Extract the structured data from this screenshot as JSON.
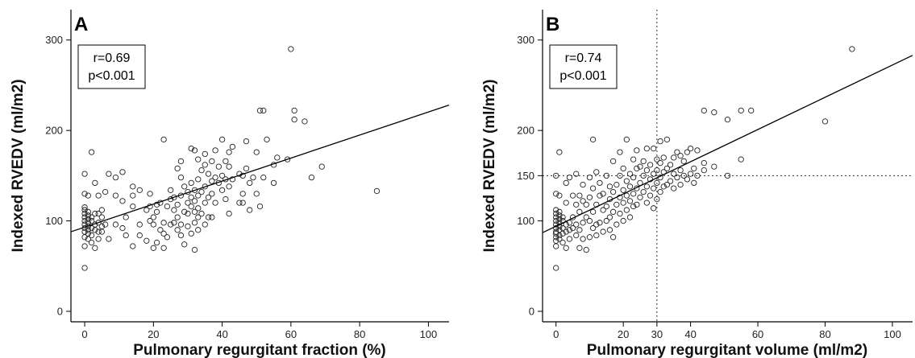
{
  "chart_data": [
    {
      "type": "scatter",
      "panel_label": "A",
      "xlabel": "Pulmonary regurgitant fraction (%)",
      "ylabel": "Indexed RVEDV (ml/m2)",
      "xlim": [
        -4,
        106
      ],
      "ylim": [
        0,
        330
      ],
      "xticks": [
        0,
        20,
        40,
        60,
        80,
        100
      ],
      "yticks": [
        0,
        100,
        200,
        300
      ],
      "annotation": [
        "r=0.69",
        "p<0.001"
      ],
      "regression": {
        "x": [
          -4,
          106
        ],
        "y": [
          88,
          228
        ]
      },
      "reference_lines": [],
      "points": [
        [
          0,
          48
        ],
        [
          0,
          72
        ],
        [
          0,
          82
        ],
        [
          0,
          88
        ],
        [
          0,
          92
        ],
        [
          0,
          96
        ],
        [
          0,
          100
        ],
        [
          0,
          104
        ],
        [
          0,
          108
        ],
        [
          0,
          112
        ],
        [
          0,
          115
        ],
        [
          0,
          130
        ],
        [
          0,
          152
        ],
        [
          1,
          80
        ],
        [
          1,
          86
        ],
        [
          1,
          90
        ],
        [
          1,
          94
        ],
        [
          1,
          98
        ],
        [
          1,
          102
        ],
        [
          1,
          106
        ],
        [
          1,
          110
        ],
        [
          1,
          128
        ],
        [
          2,
          76
        ],
        [
          2,
          84
        ],
        [
          2,
          92
        ],
        [
          2,
          100
        ],
        [
          2,
          104
        ],
        [
          2,
          176
        ],
        [
          3,
          70
        ],
        [
          3,
          90
        ],
        [
          3,
          96
        ],
        [
          3,
          108
        ],
        [
          3,
          142
        ],
        [
          4,
          80
        ],
        [
          4,
          88
        ],
        [
          4,
          98
        ],
        [
          4,
          108
        ],
        [
          4,
          128
        ],
        [
          5,
          88
        ],
        [
          5,
          94
        ],
        [
          5,
          104
        ],
        [
          5,
          112
        ],
        [
          6,
          96
        ],
        [
          6,
          132
        ],
        [
          7,
          80
        ],
        [
          7,
          152
        ],
        [
          9,
          96
        ],
        [
          9,
          128
        ],
        [
          9,
          148
        ],
        [
          11,
          92
        ],
        [
          11,
          122
        ],
        [
          11,
          154
        ],
        [
          12,
          84
        ],
        [
          12,
          104
        ],
        [
          14,
          72
        ],
        [
          14,
          116
        ],
        [
          14,
          128
        ],
        [
          14,
          138
        ],
        [
          16,
          84
        ],
        [
          16,
          96
        ],
        [
          16,
          134
        ],
        [
          18,
          78
        ],
        [
          18,
          112
        ],
        [
          19,
          100
        ],
        [
          19,
          116
        ],
        [
          19,
          130
        ],
        [
          20,
          70
        ],
        [
          20,
          96
        ],
        [
          20,
          104
        ],
        [
          21,
          76
        ],
        [
          21,
          110
        ],
        [
          21,
          118
        ],
        [
          22,
          90
        ],
        [
          22,
          120
        ],
        [
          23,
          70
        ],
        [
          23,
          86
        ],
        [
          23,
          98
        ],
        [
          23,
          190
        ],
        [
          24,
          82
        ],
        [
          24,
          116
        ],
        [
          25,
          96
        ],
        [
          25,
          124
        ],
        [
          25,
          134
        ],
        [
          26,
          98
        ],
        [
          26,
          112
        ],
        [
          26,
          126
        ],
        [
          27,
          90
        ],
        [
          27,
          104
        ],
        [
          27,
          118
        ],
        [
          27,
          158
        ],
        [
          28,
          84
        ],
        [
          28,
          96
        ],
        [
          28,
          128
        ],
        [
          28,
          148
        ],
        [
          28,
          166
        ],
        [
          29,
          74
        ],
        [
          29,
          110
        ],
        [
          29,
          138
        ],
        [
          30,
          94
        ],
        [
          30,
          108
        ],
        [
          30,
          120
        ],
        [
          30,
          132
        ],
        [
          31,
          86
        ],
        [
          31,
          116
        ],
        [
          31,
          126
        ],
        [
          31,
          142
        ],
        [
          31,
          180
        ],
        [
          32,
          68
        ],
        [
          32,
          98
        ],
        [
          32,
          110
        ],
        [
          32,
          122
        ],
        [
          32,
          134
        ],
        [
          32,
          178
        ],
        [
          33,
          90
        ],
        [
          33,
          104
        ],
        [
          33,
          114
        ],
        [
          33,
          128
        ],
        [
          33,
          146
        ],
        [
          33,
          168
        ],
        [
          34,
          108
        ],
        [
          34,
          132
        ],
        [
          34,
          156
        ],
        [
          35,
          96
        ],
        [
          35,
          120
        ],
        [
          35,
          138
        ],
        [
          35,
          162
        ],
        [
          35,
          174
        ],
        [
          36,
          104
        ],
        [
          36,
          126
        ],
        [
          36,
          152
        ],
        [
          37,
          104
        ],
        [
          37,
          130
        ],
        [
          37,
          144
        ],
        [
          37,
          166
        ],
        [
          38,
          120
        ],
        [
          38,
          148
        ],
        [
          38,
          178
        ],
        [
          39,
          142
        ],
        [
          39,
          160
        ],
        [
          40,
          134
        ],
        [
          40,
          150
        ],
        [
          40,
          190
        ],
        [
          41,
          124
        ],
        [
          41,
          146
        ],
        [
          41,
          166
        ],
        [
          42,
          108
        ],
        [
          42,
          138
        ],
        [
          42,
          160
        ],
        [
          42,
          176
        ],
        [
          43,
          146
        ],
        [
          43,
          182
        ],
        [
          45,
          120
        ],
        [
          45,
          152
        ],
        [
          46,
          120
        ],
        [
          46,
          130
        ],
        [
          46,
          150
        ],
        [
          47,
          158
        ],
        [
          47,
          188
        ],
        [
          48,
          112
        ],
        [
          48,
          142
        ],
        [
          49,
          148
        ],
        [
          50,
          130
        ],
        [
          50,
          176
        ],
        [
          51,
          116
        ],
        [
          51,
          222
        ],
        [
          52,
          148
        ],
        [
          52,
          222
        ],
        [
          53,
          190
        ],
        [
          55,
          142
        ],
        [
          55,
          162
        ],
        [
          56,
          170
        ],
        [
          59,
          168
        ],
        [
          60,
          290
        ],
        [
          61,
          212
        ],
        [
          61,
          222
        ],
        [
          64,
          210
        ],
        [
          66,
          148
        ],
        [
          69,
          160
        ],
        [
          85,
          133
        ]
      ]
    },
    {
      "type": "scatter",
      "panel_label": "B",
      "xlabel": "Pulmonary regurgitant volume (ml/m2)",
      "ylabel": "Indexed RVEDV (ml/m2)",
      "xlim": [
        -4,
        106
      ],
      "ylim": [
        0,
        330
      ],
      "xticks": [
        0,
        20,
        30,
        40,
        60,
        80,
        100
      ],
      "yticks": [
        0,
        100,
        150,
        200,
        300
      ],
      "annotation": [
        "r=0.74",
        "p<0.001"
      ],
      "regression": {
        "x": [
          -4,
          106
        ],
        "y": [
          87,
          283
        ]
      },
      "reference_lines": [
        {
          "orientation": "vertical",
          "value": 30
        },
        {
          "orientation": "horizontal",
          "value": 150
        }
      ],
      "points": [
        [
          0,
          48
        ],
        [
          0,
          72
        ],
        [
          0,
          78
        ],
        [
          0,
          82
        ],
        [
          0,
          86
        ],
        [
          0,
          88
        ],
        [
          0,
          92
        ],
        [
          0,
          96
        ],
        [
          0,
          100
        ],
        [
          0,
          104
        ],
        [
          0,
          108
        ],
        [
          0,
          112
        ],
        [
          0,
          130
        ],
        [
          0,
          150
        ],
        [
          1,
          80
        ],
        [
          1,
          84
        ],
        [
          1,
          90
        ],
        [
          1,
          94
        ],
        [
          1,
          98
        ],
        [
          1,
          102
        ],
        [
          1,
          106
        ],
        [
          1,
          110
        ],
        [
          1,
          128
        ],
        [
          1,
          176
        ],
        [
          2,
          76
        ],
        [
          2,
          86
        ],
        [
          2,
          92
        ],
        [
          2,
          100
        ],
        [
          2,
          104
        ],
        [
          3,
          70
        ],
        [
          3,
          88
        ],
        [
          3,
          96
        ],
        [
          3,
          120
        ],
        [
          3,
          142
        ],
        [
          4,
          80
        ],
        [
          4,
          90
        ],
        [
          4,
          98
        ],
        [
          4,
          148
        ],
        [
          5,
          92
        ],
        [
          5,
          104
        ],
        [
          5,
          128
        ],
        [
          6,
          84
        ],
        [
          6,
          96
        ],
        [
          6,
          118
        ],
        [
          6,
          152
        ],
        [
          7,
          70
        ],
        [
          7,
          90
        ],
        [
          7,
          110
        ],
        [
          7,
          128
        ],
        [
          8,
          80
        ],
        [
          8,
          98
        ],
        [
          8,
          122
        ],
        [
          8,
          140
        ],
        [
          9,
          68
        ],
        [
          9,
          104
        ],
        [
          9,
          118
        ],
        [
          10,
          82
        ],
        [
          10,
          100
        ],
        [
          10,
          126
        ],
        [
          10,
          148
        ],
        [
          11,
          92
        ],
        [
          11,
          110
        ],
        [
          11,
          136
        ],
        [
          11,
          190
        ],
        [
          12,
          84
        ],
        [
          12,
          96
        ],
        [
          12,
          118
        ],
        [
          12,
          154
        ],
        [
          13,
          98
        ],
        [
          13,
          128
        ],
        [
          13,
          142
        ],
        [
          14,
          88
        ],
        [
          14,
          112
        ],
        [
          14,
          130
        ],
        [
          15,
          100
        ],
        [
          15,
          116
        ],
        [
          15,
          150
        ],
        [
          16,
          90
        ],
        [
          16,
          104
        ],
        [
          16,
          124
        ],
        [
          16,
          138
        ],
        [
          17,
          82
        ],
        [
          17,
          110
        ],
        [
          17,
          132
        ],
        [
          17,
          166
        ],
        [
          18,
          96
        ],
        [
          18,
          118
        ],
        [
          18,
          140
        ],
        [
          19,
          108
        ],
        [
          19,
          126
        ],
        [
          19,
          150
        ],
        [
          19,
          176
        ],
        [
          20,
          100
        ],
        [
          20,
          120
        ],
        [
          20,
          134
        ],
        [
          20,
          158
        ],
        [
          21,
          112
        ],
        [
          21,
          128
        ],
        [
          21,
          144
        ],
        [
          21,
          190
        ],
        [
          22,
          104
        ],
        [
          22,
          122
        ],
        [
          22,
          138
        ],
        [
          22,
          152
        ],
        [
          23,
          116
        ],
        [
          23,
          130
        ],
        [
          23,
          148
        ],
        [
          23,
          168
        ],
        [
          24,
          118
        ],
        [
          24,
          136
        ],
        [
          24,
          158
        ],
        [
          24,
          178
        ],
        [
          25,
          126
        ],
        [
          25,
          142
        ],
        [
          25,
          160
        ],
        [
          26,
          132
        ],
        [
          26,
          150
        ],
        [
          26,
          166
        ],
        [
          27,
          120
        ],
        [
          27,
          138
        ],
        [
          27,
          156
        ],
        [
          27,
          180
        ],
        [
          28,
          128
        ],
        [
          28,
          146
        ],
        [
          28,
          162
        ],
        [
          29,
          114
        ],
        [
          29,
          136
        ],
        [
          29,
          152
        ],
        [
          29,
          180
        ],
        [
          30,
          124
        ],
        [
          30,
          142
        ],
        [
          30,
          156
        ],
        [
          30,
          168
        ],
        [
          31,
          132
        ],
        [
          31,
          148
        ],
        [
          31,
          164
        ],
        [
          31,
          188
        ],
        [
          32,
          138
        ],
        [
          32,
          154
        ],
        [
          32,
          170
        ],
        [
          33,
          140
        ],
        [
          33,
          158
        ],
        [
          33,
          190
        ],
        [
          34,
          144
        ],
        [
          34,
          162
        ],
        [
          35,
          136
        ],
        [
          35,
          152
        ],
        [
          35,
          170
        ],
        [
          36,
          148
        ],
        [
          36,
          176
        ],
        [
          37,
          140
        ],
        [
          37,
          156
        ],
        [
          37,
          172
        ],
        [
          38,
          150
        ],
        [
          38,
          166
        ],
        [
          39,
          146
        ],
        [
          39,
          176
        ],
        [
          40,
          152
        ],
        [
          40,
          180
        ],
        [
          41,
          142
        ],
        [
          41,
          158
        ],
        [
          42,
          150
        ],
        [
          42,
          178
        ],
        [
          44,
          156
        ],
        [
          44,
          164
        ],
        [
          44,
          222
        ],
        [
          47,
          160
        ],
        [
          47,
          220
        ],
        [
          51,
          150
        ],
        [
          51,
          212
        ],
        [
          55,
          168
        ],
        [
          55,
          222
        ],
        [
          58,
          222
        ],
        [
          80,
          210
        ],
        [
          88,
          290
        ]
      ]
    }
  ]
}
